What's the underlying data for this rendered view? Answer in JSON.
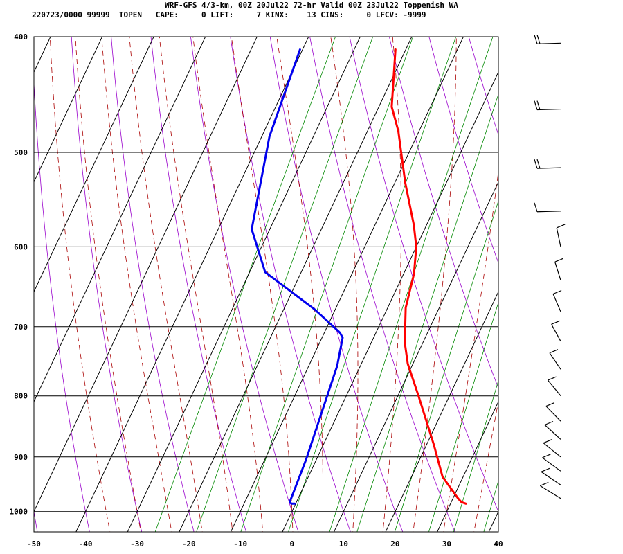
{
  "header": {
    "title": "WRF-GFS 4/3-km, 00Z 20Jul22 72-hr Valid 00Z 23Jul22 Toppenish WA",
    "indices": "220723/0000 99999  TOPEN   CAPE:     0 LIFT:     7 KINX:    13 CINS:     0 LFCV: -9999"
  },
  "colors": {
    "temperature": "#ff0000",
    "dewpoint": "#0000ee",
    "isotherm_grid": "#000000",
    "dry_adiabat": "#9900cc",
    "moist_adiabat": "#aa0000",
    "mixing_ratio": "#008800",
    "wind_barb": "#000000"
  },
  "chart_data": {
    "type": "line",
    "title": "",
    "xlabel": "",
    "ylabel": "",
    "xlim": [
      -50,
      40
    ],
    "ylim": [
      1040,
      400
    ],
    "y_scale": "log",
    "grid": true,
    "x_ticks": [
      -50,
      -40,
      -30,
      -20,
      -10,
      0,
      10,
      20,
      30,
      40
    ],
    "y_ticks": [
      400,
      500,
      600,
      700,
      800,
      900,
      1000
    ],
    "series": [
      {
        "key": "temperature",
        "points": [
          {
            "x": 33.0,
            "y": 985
          },
          {
            "x": 32.0,
            "y": 982
          },
          {
            "x": 31.0,
            "y": 975
          },
          {
            "x": 26.0,
            "y": 935
          },
          {
            "x": 21.5,
            "y": 880
          },
          {
            "x": 14.0,
            "y": 800
          },
          {
            "x": 9.0,
            "y": 752
          },
          {
            "x": 6.5,
            "y": 722
          },
          {
            "x": 3.5,
            "y": 675
          },
          {
            "x": 2.0,
            "y": 632
          },
          {
            "x": 0.0,
            "y": 600
          },
          {
            "x": -2.5,
            "y": 575
          },
          {
            "x": -8.0,
            "y": 530
          },
          {
            "x": -14.0,
            "y": 480
          },
          {
            "x": -17.5,
            "y": 458
          },
          {
            "x": -22.0,
            "y": 410
          }
        ]
      },
      {
        "key": "dewpoint",
        "points": [
          {
            "x": -0.2,
            "y": 985
          },
          {
            "x": -0.8,
            "y": 985
          },
          {
            "x": -1.3,
            "y": 982
          },
          {
            "x": -2.0,
            "y": 905
          },
          {
            "x": -4.5,
            "y": 755
          },
          {
            "x": -6.0,
            "y": 715
          },
          {
            "x": -7.0,
            "y": 708
          },
          {
            "x": -14.0,
            "y": 677
          },
          {
            "x": -27.0,
            "y": 630
          },
          {
            "x": -33.5,
            "y": 580
          },
          {
            "x": -38.5,
            "y": 485
          },
          {
            "x": -40.5,
            "y": 410
          }
        ]
      }
    ],
    "wind_barbs": [
      {
        "p": 405,
        "barbs": 2
      },
      {
        "p": 460,
        "barbs": 2
      },
      {
        "p": 515,
        "barbs": 2
      },
      {
        "p": 560,
        "barbs": 1
      },
      {
        "p": 600,
        "barbs": 1
      },
      {
        "p": 640,
        "barbs": 1
      },
      {
        "p": 680,
        "barbs": 1
      },
      {
        "p": 720,
        "barbs": 1
      },
      {
        "p": 760,
        "barbs": 1
      },
      {
        "p": 800,
        "barbs": 1
      },
      {
        "p": 840,
        "barbs": 1
      },
      {
        "p": 870,
        "barbs": 1
      },
      {
        "p": 900,
        "barbs": 1
      },
      {
        "p": 925,
        "barbs": 1
      },
      {
        "p": 950,
        "barbs": 1
      },
      {
        "p": 975,
        "barbs": 1
      }
    ]
  }
}
